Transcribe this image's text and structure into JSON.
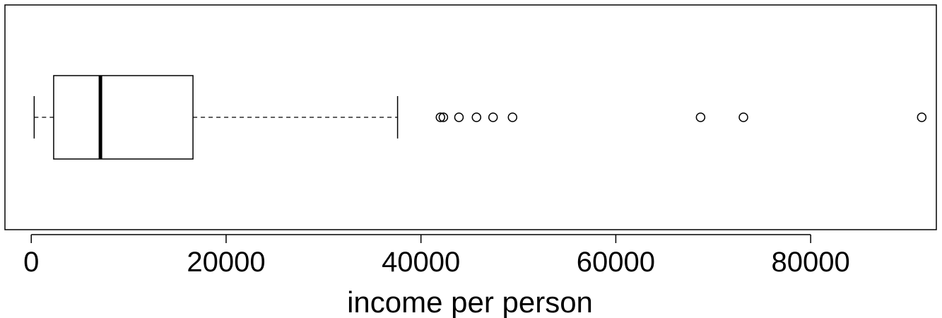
{
  "chart_data": {
    "type": "boxplot",
    "orientation": "horizontal",
    "xlabel": "income per person",
    "ylabel": "",
    "title": "",
    "xlim": [
      -2700,
      92900
    ],
    "x_ticks": [
      0,
      20000,
      40000,
      60000,
      80000
    ],
    "x_tick_labels": [
      "0",
      "20000",
      "40000",
      "60000",
      "80000"
    ],
    "box": {
      "whisker_low": 300,
      "q1": 2300,
      "median": 7100,
      "q3": 16600,
      "whisker_high": 37600
    },
    "outliers": [
      42000,
      42300,
      43900,
      45700,
      47400,
      49400,
      68700,
      73100,
      91400
    ],
    "grid": false,
    "legend": "none"
  }
}
